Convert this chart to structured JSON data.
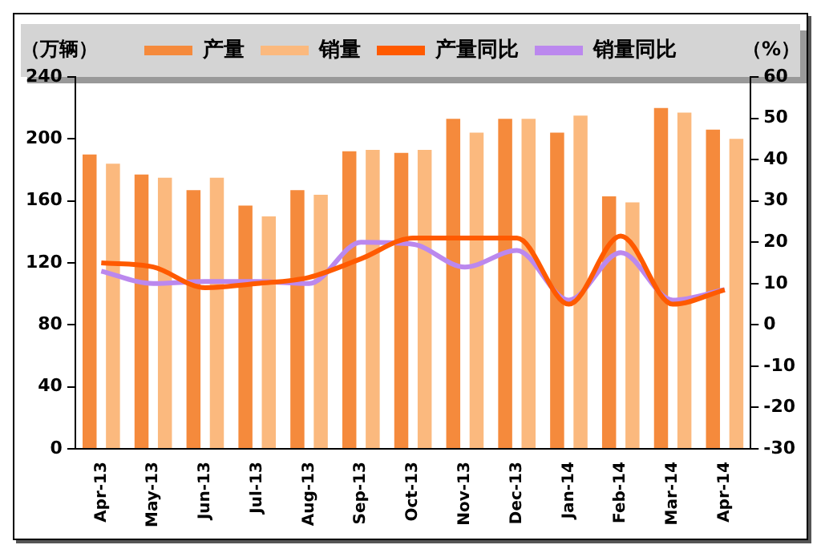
{
  "chart_data": {
    "type": "bar",
    "ylabel": "（万辆）",
    "y2label": "（%）",
    "categories": [
      "Apr-13",
      "May-13",
      "Jun-13",
      "Jul-13",
      "Aug-13",
      "Sep-13",
      "Oct-13",
      "Nov-13",
      "Dec-13",
      "Jan-14",
      "Feb-14",
      "Mar-14",
      "Apr-14"
    ],
    "series": [
      {
        "name": "产量",
        "color": "#f58a3c",
        "values": [
          190,
          177,
          167,
          157,
          167,
          192,
          191,
          213,
          213,
          204,
          163,
          220,
          206
        ]
      },
      {
        "name": "销量",
        "color": "#fbb97e",
        "values": [
          184,
          175,
          175,
          150,
          164,
          193,
          193,
          204,
          213,
          215,
          159,
          217,
          200
        ]
      },
      {
        "name": "产量同比",
        "type": "line",
        "axis": "y2",
        "color": "#ff5a00",
        "values": [
          15,
          14,
          9,
          10,
          11.5,
          16,
          21,
          21,
          21,
          5,
          21.5,
          5,
          8.5
        ]
      },
      {
        "name": "销量同比",
        "type": "line",
        "axis": "y2",
        "color": "#bb88ee",
        "values": [
          13,
          10,
          10.5,
          10.5,
          10,
          20,
          19.5,
          14,
          18,
          6,
          17.5,
          6,
          8.5
        ]
      }
    ],
    "ylim": [
      0,
      240
    ],
    "yticks": [
      0,
      40,
      80,
      120,
      160,
      200,
      240
    ],
    "y2lim": [
      -30,
      60
    ],
    "y2ticks": [
      -30,
      -20,
      -10,
      0,
      10,
      20,
      30,
      40,
      50,
      60
    ],
    "legend": "top",
    "grid": false,
    "marker": "none"
  }
}
